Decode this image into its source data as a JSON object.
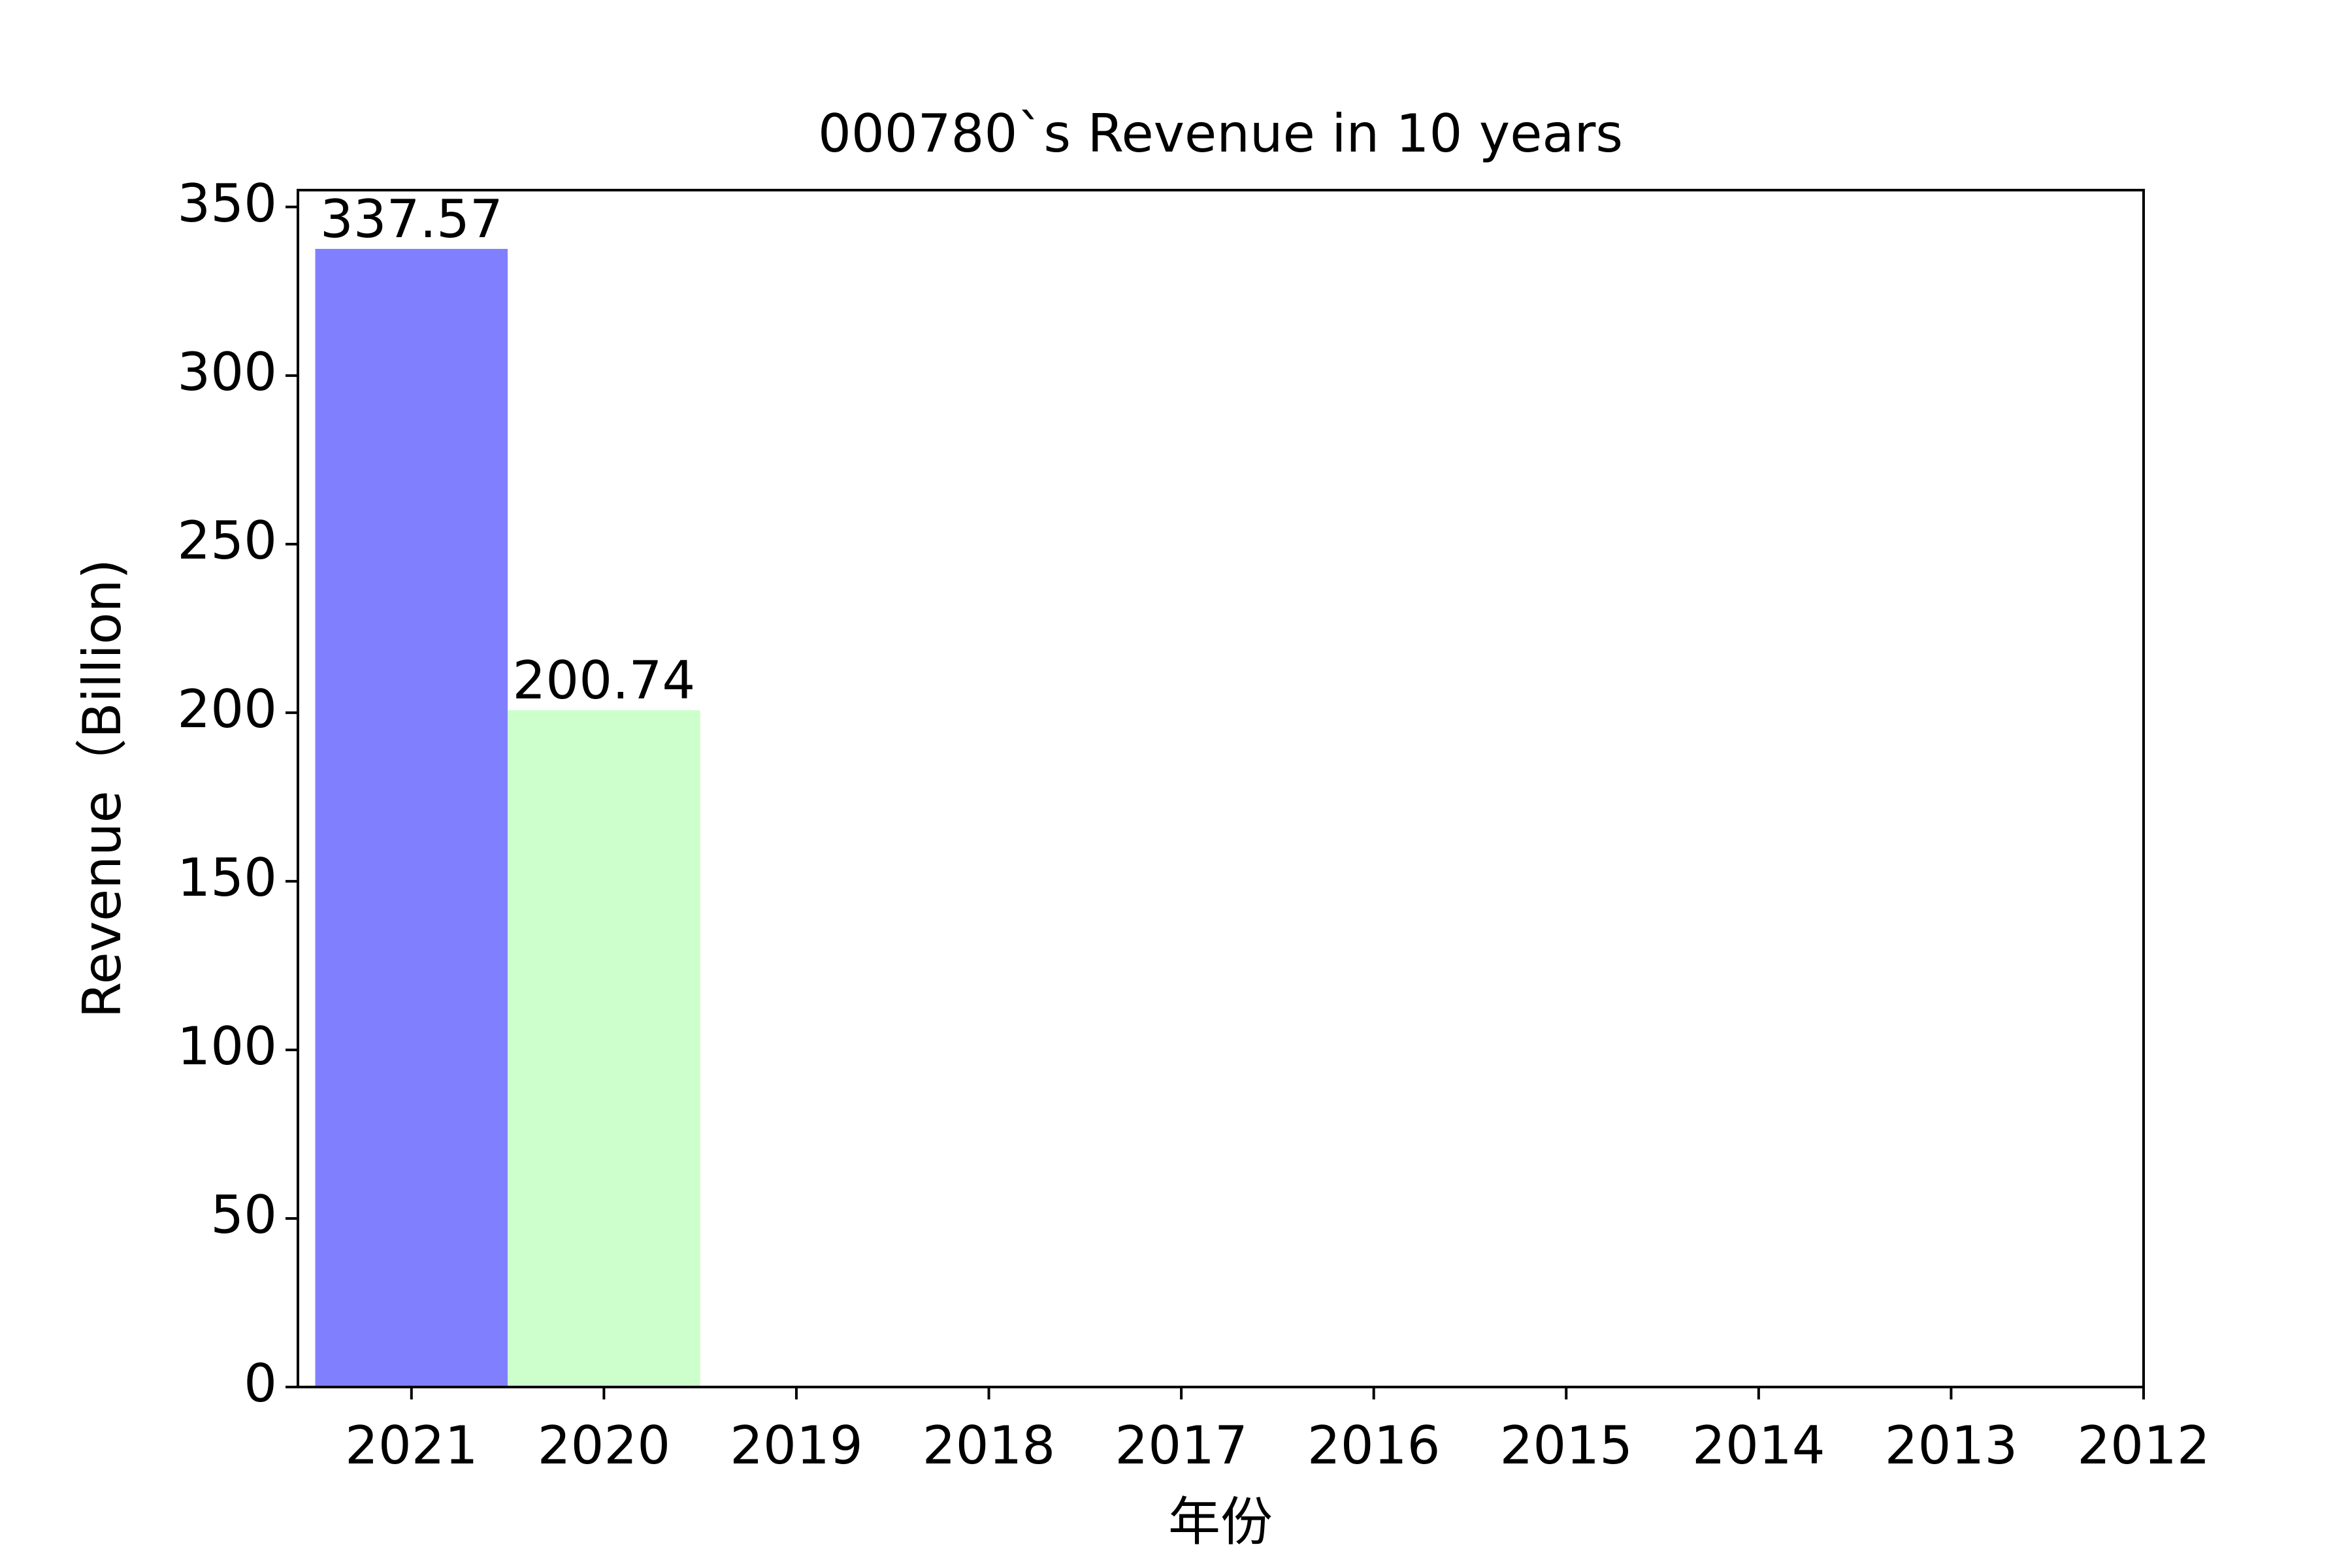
{
  "chart_data": {
    "type": "bar",
    "title": "000780`s Revenue in 10 years",
    "x_label": "年份",
    "y_label": "Revenue（Billion)",
    "categories": [
      "2021",
      "2020",
      "2019",
      "2018",
      "2017",
      "2016",
      "2015",
      "2014",
      "2013",
      "2012"
    ],
    "values": [
      337.57,
      200.74,
      null,
      null,
      null,
      null,
      null,
      null,
      null,
      null
    ],
    "colors": [
      "#8080ff",
      "#ccffcc",
      null,
      null,
      null,
      null,
      null,
      null,
      null,
      null
    ],
    "ylim": [
      0,
      355
    ],
    "yticks": [
      0,
      50,
      100,
      150,
      200,
      250,
      300,
      350
    ],
    "show_value_labels": true
  }
}
